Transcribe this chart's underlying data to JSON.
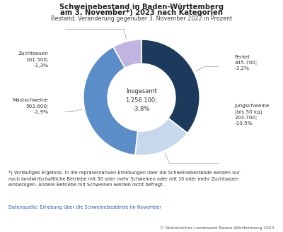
{
  "title_line1": "Schweinebestand in Baden-Württemberg",
  "title_line2": "am 3. November*) 2023 nach Kategorien",
  "subtitle": "Bestand; Veränderung gegenüber 3. November 2022 in Prozent",
  "center_label_line1": "Insgesamt",
  "center_label_line2": "1.256.100;",
  "center_label_line3": "-3,8%",
  "segments": [
    {
      "label": "Ferkel\n445.700;\n-3,2%",
      "value": 445700,
      "color": "#1b3a5c"
    },
    {
      "label": "Jungschweine\n(bis 50 kg)\n203.700;\n-10,5%",
      "value": 203700,
      "color": "#c8d8ec"
    },
    {
      "label": "Mastschweine\n503.600;\n-1,9%",
      "value": 503600,
      "color": "#5b8dc8"
    },
    {
      "label": "Zuchtsauen\n101.500;\n-1,3%",
      "value": 101500,
      "color": "#c0b4e0"
    }
  ],
  "footnote": "*) Vorläufiges Ergebnis. In die repräsentativen Erhebungen über die Schweinebestände werden nur\nnoch landwirtschaftliche Betriebe mit 50 oder mehr Schweinen oder mit 10 oder mehr Zuchtsauen\neinbezogen. Andere Betriebe mit Schweinen werden nicht befragt.",
  "source": "Datenquelle: Erhebung über die Schweinebestände im November",
  "copyright": "© Statistisches Landesamt Baden-Württemberg 2023",
  "bg_color": "#ffffff",
  "line_color": "#aaaaaa"
}
